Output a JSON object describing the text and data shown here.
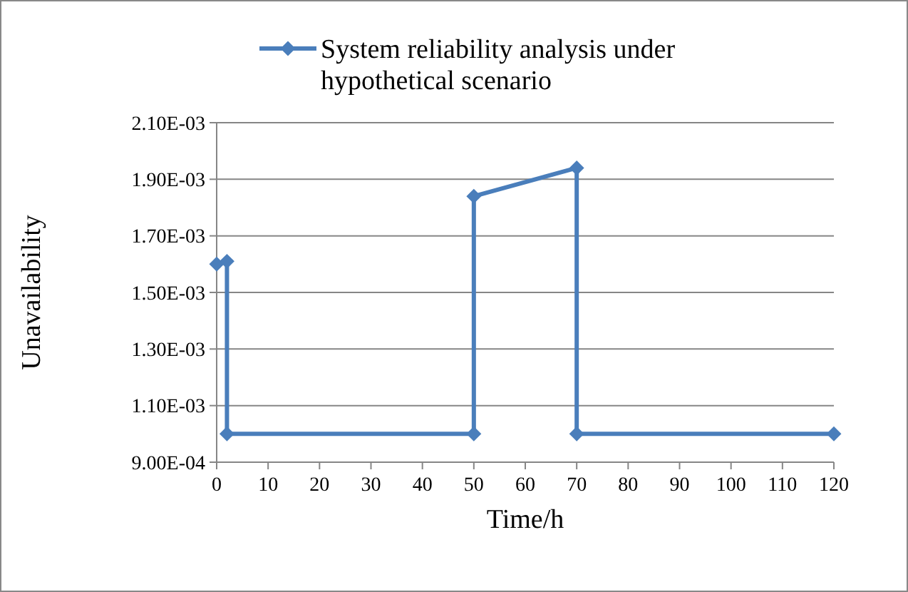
{
  "chart_data": {
    "type": "line",
    "xlabel": "Time/h",
    "ylabel": "Unavailability",
    "series": [
      {
        "name": "System reliability analysis under hypothetical scenario",
        "color": "#4a7ebb",
        "x": [
          0,
          2,
          2,
          50,
          50,
          70,
          70,
          120
        ],
        "values": [
          0.0016,
          0.00161,
          0.001,
          0.001,
          0.00184,
          0.00194,
          0.001,
          0.001
        ]
      }
    ],
    "xlim": [
      0,
      120
    ],
    "xticks": [
      0,
      10,
      20,
      30,
      40,
      50,
      60,
      70,
      80,
      90,
      100,
      110,
      120
    ],
    "ylim": [
      0.0009,
      0.0021
    ],
    "yticks": [
      {
        "value": 0.0009,
        "label": "9.00E-04"
      },
      {
        "value": 0.0011,
        "label": "1.10E-03"
      },
      {
        "value": 0.0013,
        "label": "1.30E-03"
      },
      {
        "value": 0.0015,
        "label": "1.50E-03"
      },
      {
        "value": 0.0017,
        "label": "1.70E-03"
      },
      {
        "value": 0.0019,
        "label": "1.90E-03"
      },
      {
        "value": 0.0021,
        "label": "2.10E-03"
      }
    ],
    "grid": "y",
    "legend": "top",
    "marker": "diamond",
    "line_style": "solid"
  }
}
